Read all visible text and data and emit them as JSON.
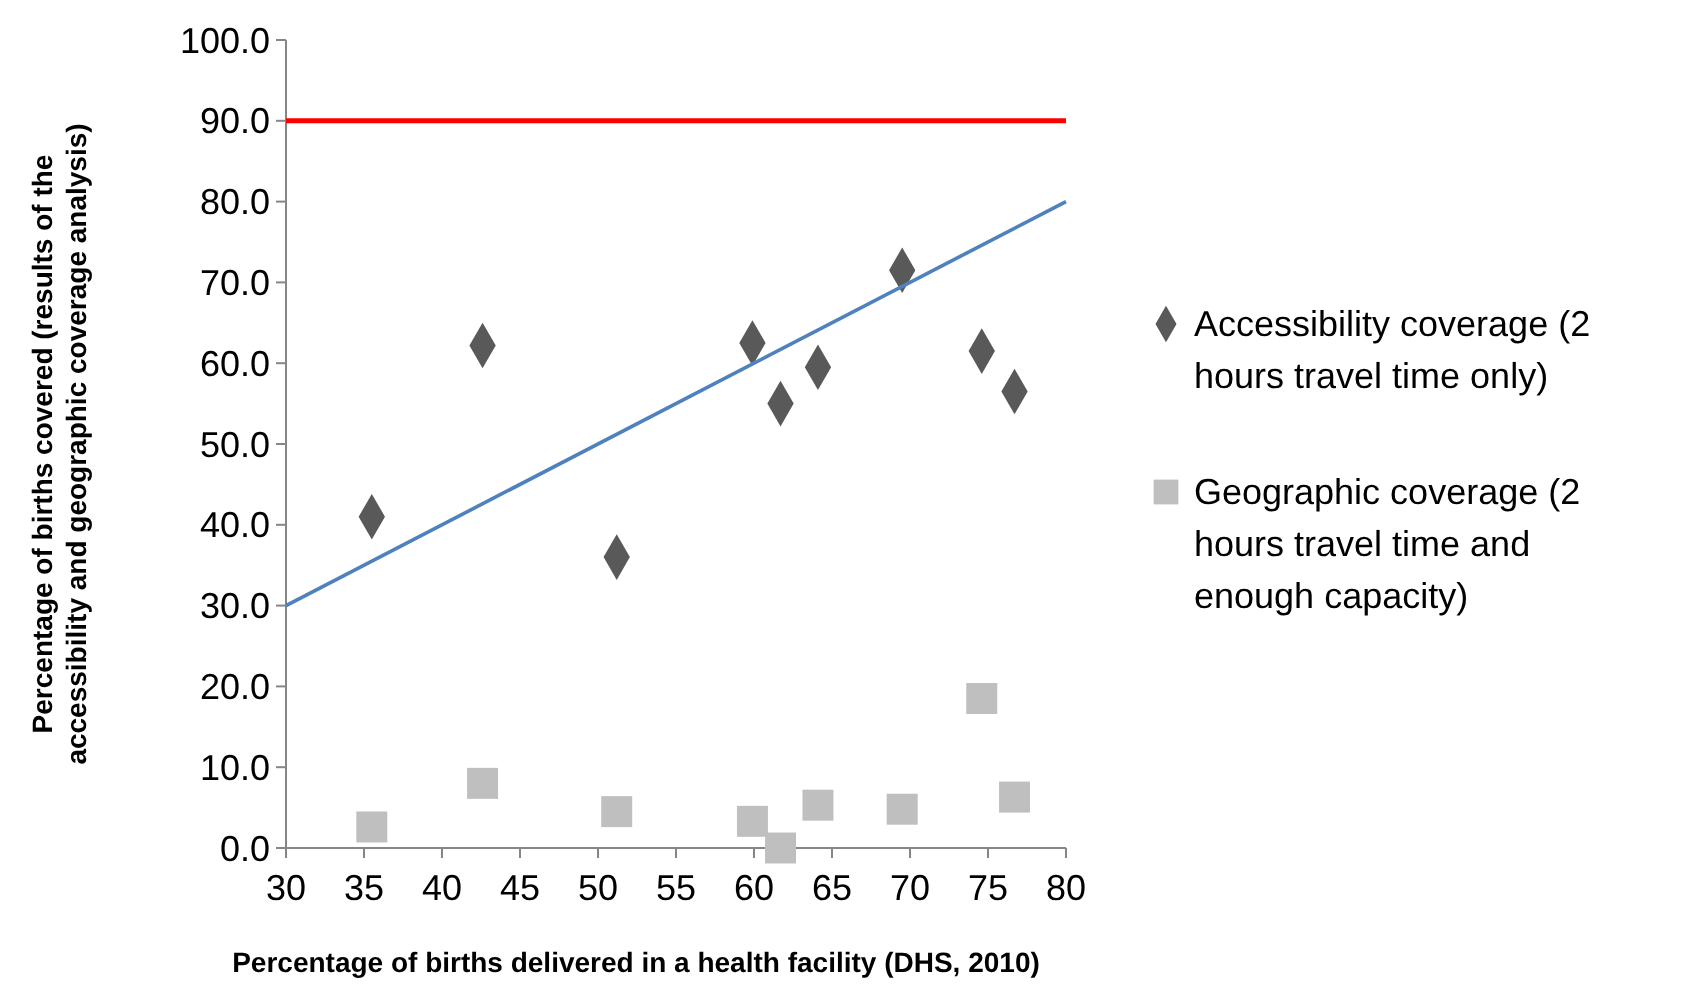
{
  "chart_data": {
    "type": "scatter",
    "xlabel": "Percentage of births delivered in a health facility (DHS, 2010)",
    "ylabel": "Percentage of births covered (results of the accessibility and geographic coverage analysis)",
    "xlim": [
      30,
      80
    ],
    "xticks": [
      30,
      35,
      40,
      45,
      50,
      55,
      60,
      65,
      70,
      75,
      80
    ],
    "ylim": [
      0,
      100
    ],
    "yticks": [
      {
        "value": 0,
        "label": "0.0"
      },
      {
        "value": 10,
        "label": "10.0"
      },
      {
        "value": 20,
        "label": "20.0"
      },
      {
        "value": 30,
        "label": "30.0"
      },
      {
        "value": 40,
        "label": "40.0"
      },
      {
        "value": 50,
        "label": "50.0"
      },
      {
        "value": 60,
        "label": "60.0"
      },
      {
        "value": 70,
        "label": "70.0"
      },
      {
        "value": 80,
        "label": "80.0"
      },
      {
        "value": 90,
        "label": "90.0"
      },
      {
        "value": 100,
        "label": "100.0"
      }
    ],
    "grid": false,
    "legend": "right",
    "ref_lines": [
      {
        "axis": "y",
        "value": 90,
        "color": "#ff0000"
      }
    ],
    "series": [
      {
        "name": "Accessibility coverage (2 hours travel time only)",
        "color": "#595959",
        "marker": "diamond",
        "x": [
          35.5,
          42.6,
          51.2,
          59.9,
          61.7,
          64.1,
          69.5,
          74.6,
          76.7
        ],
        "values": [
          41,
          62.2,
          36,
          62.5,
          55,
          59.5,
          71.5,
          61.5,
          56.5
        ]
      },
      {
        "name": "Geographic coverage (2 hours travel time and enough capacity)",
        "color": "#bfbfbf",
        "marker": "square",
        "x": [
          35.5,
          42.6,
          51.2,
          59.9,
          61.7,
          64.1,
          69.5,
          74.6,
          76.7
        ],
        "values": [
          2.6,
          8,
          4.5,
          3.3,
          0,
          5.3,
          4.8,
          18.5,
          6.3
        ]
      },
      {
        "type": "line",
        "color": "#4f81bd",
        "x": [
          30,
          80
        ],
        "values": [
          30,
          80
        ]
      }
    ]
  }
}
